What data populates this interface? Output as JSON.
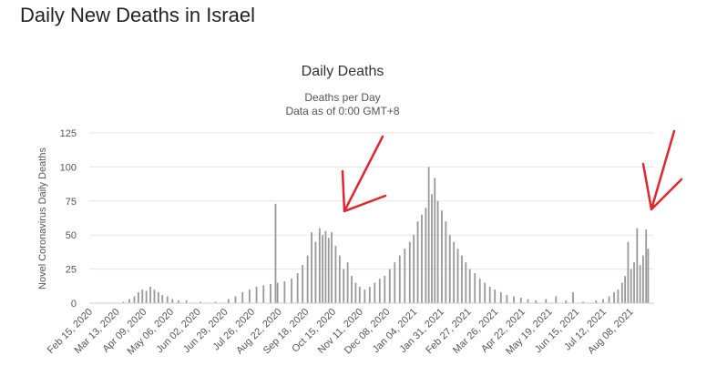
{
  "page": {
    "heading": "Daily New Deaths in Israel"
  },
  "chart_data": {
    "type": "bar",
    "title": "Daily Deaths",
    "subtitle_lines": [
      "Deaths per Day",
      "Data as of 0:00 GMT+8"
    ],
    "ylabel": "Novel Coronavirus Daily Deaths",
    "xlabel": "",
    "ylim": [
      0,
      125
    ],
    "yticks": [
      0,
      25,
      50,
      75,
      100,
      125
    ],
    "grid": true,
    "bar_color": "#999999",
    "annotation_color": "#e0262f",
    "x_range": [
      "2020-02-15",
      "2021-09-01"
    ],
    "xtick_labels": [
      "Feb 15, 2020",
      "Mar 13, 2020",
      "Apr 09, 2020",
      "May 06, 2020",
      "Jun 02, 2020",
      "Jun 29, 2020",
      "Jul 26, 2020",
      "Aug 22, 2020",
      "Sep 18, 2020",
      "Oct 15, 2020",
      "Nov 11, 2020",
      "Dec 08, 2020",
      "Jan 04, 2021",
      "Jan 31, 2021",
      "Feb 27, 2021",
      "Mar 26, 2021",
      "Apr 22, 2021",
      "May 19, 2021",
      "Jun 15, 2021",
      "Jul 12, 2021",
      "Aug 08, 2021"
    ],
    "values": [
      {
        "date": "2020-03-20",
        "y": 1
      },
      {
        "date": "2020-03-26",
        "y": 3
      },
      {
        "date": "2020-03-31",
        "y": 5
      },
      {
        "date": "2020-04-04",
        "y": 8
      },
      {
        "date": "2020-04-08",
        "y": 10
      },
      {
        "date": "2020-04-12",
        "y": 9
      },
      {
        "date": "2020-04-16",
        "y": 12
      },
      {
        "date": "2020-04-20",
        "y": 10
      },
      {
        "date": "2020-04-24",
        "y": 8
      },
      {
        "date": "2020-04-28",
        "y": 6
      },
      {
        "date": "2020-05-03",
        "y": 5
      },
      {
        "date": "2020-05-08",
        "y": 3
      },
      {
        "date": "2020-05-14",
        "y": 2
      },
      {
        "date": "2020-05-22",
        "y": 2
      },
      {
        "date": "2020-06-05",
        "y": 1
      },
      {
        "date": "2020-06-20",
        "y": 1
      },
      {
        "date": "2020-07-03",
        "y": 3
      },
      {
        "date": "2020-07-10",
        "y": 5
      },
      {
        "date": "2020-07-17",
        "y": 8
      },
      {
        "date": "2020-07-24",
        "y": 10
      },
      {
        "date": "2020-07-31",
        "y": 12
      },
      {
        "date": "2020-08-07",
        "y": 13
      },
      {
        "date": "2020-08-14",
        "y": 14
      },
      {
        "date": "2020-08-19",
        "y": 73
      },
      {
        "date": "2020-08-21",
        "y": 15
      },
      {
        "date": "2020-08-28",
        "y": 16
      },
      {
        "date": "2020-09-04",
        "y": 18
      },
      {
        "date": "2020-09-10",
        "y": 22
      },
      {
        "date": "2020-09-15",
        "y": 28
      },
      {
        "date": "2020-09-20",
        "y": 35
      },
      {
        "date": "2020-09-24",
        "y": 52
      },
      {
        "date": "2020-09-28",
        "y": 45
      },
      {
        "date": "2020-10-02",
        "y": 55
      },
      {
        "date": "2020-10-05",
        "y": 50
      },
      {
        "date": "2020-10-08",
        "y": 53
      },
      {
        "date": "2020-10-11",
        "y": 48
      },
      {
        "date": "2020-10-14",
        "y": 52
      },
      {
        "date": "2020-10-18",
        "y": 42
      },
      {
        "date": "2020-10-22",
        "y": 35
      },
      {
        "date": "2020-10-26",
        "y": 25
      },
      {
        "date": "2020-10-30",
        "y": 30
      },
      {
        "date": "2020-11-03",
        "y": 20
      },
      {
        "date": "2020-11-07",
        "y": 15
      },
      {
        "date": "2020-11-11",
        "y": 12
      },
      {
        "date": "2020-11-16",
        "y": 10
      },
      {
        "date": "2020-11-21",
        "y": 12
      },
      {
        "date": "2020-11-26",
        "y": 15
      },
      {
        "date": "2020-12-01",
        "y": 18
      },
      {
        "date": "2020-12-06",
        "y": 20
      },
      {
        "date": "2020-12-11",
        "y": 25
      },
      {
        "date": "2020-12-16",
        "y": 30
      },
      {
        "date": "2020-12-21",
        "y": 35
      },
      {
        "date": "2020-12-26",
        "y": 40
      },
      {
        "date": "2020-12-31",
        "y": 45
      },
      {
        "date": "2021-01-04",
        "y": 50
      },
      {
        "date": "2021-01-08",
        "y": 60
      },
      {
        "date": "2021-01-12",
        "y": 65
      },
      {
        "date": "2021-01-16",
        "y": 70
      },
      {
        "date": "2021-01-19",
        "y": 100
      },
      {
        "date": "2021-01-22",
        "y": 80
      },
      {
        "date": "2021-01-25",
        "y": 92
      },
      {
        "date": "2021-01-28",
        "y": 75
      },
      {
        "date": "2021-02-01",
        "y": 68
      },
      {
        "date": "2021-02-05",
        "y": 60
      },
      {
        "date": "2021-02-09",
        "y": 50
      },
      {
        "date": "2021-02-13",
        "y": 45
      },
      {
        "date": "2021-02-17",
        "y": 40
      },
      {
        "date": "2021-02-21",
        "y": 35
      },
      {
        "date": "2021-02-25",
        "y": 30
      },
      {
        "date": "2021-03-01",
        "y": 25
      },
      {
        "date": "2021-03-06",
        "y": 22
      },
      {
        "date": "2021-03-11",
        "y": 18
      },
      {
        "date": "2021-03-16",
        "y": 15
      },
      {
        "date": "2021-03-21",
        "y": 12
      },
      {
        "date": "2021-03-26",
        "y": 10
      },
      {
        "date": "2021-04-01",
        "y": 8
      },
      {
        "date": "2021-04-07",
        "y": 6
      },
      {
        "date": "2021-04-14",
        "y": 5
      },
      {
        "date": "2021-04-21",
        "y": 4
      },
      {
        "date": "2021-04-28",
        "y": 3
      },
      {
        "date": "2021-05-06",
        "y": 2
      },
      {
        "date": "2021-05-16",
        "y": 3
      },
      {
        "date": "2021-05-26",
        "y": 5
      },
      {
        "date": "2021-06-05",
        "y": 2
      },
      {
        "date": "2021-06-12",
        "y": 8
      },
      {
        "date": "2021-06-22",
        "y": 1
      },
      {
        "date": "2021-07-05",
        "y": 2
      },
      {
        "date": "2021-07-12",
        "y": 3
      },
      {
        "date": "2021-07-18",
        "y": 5
      },
      {
        "date": "2021-07-23",
        "y": 8
      },
      {
        "date": "2021-07-27",
        "y": 10
      },
      {
        "date": "2021-07-31",
        "y": 15
      },
      {
        "date": "2021-08-03",
        "y": 20
      },
      {
        "date": "2021-08-06",
        "y": 45
      },
      {
        "date": "2021-08-09",
        "y": 25
      },
      {
        "date": "2021-08-12",
        "y": 30
      },
      {
        "date": "2021-08-15",
        "y": 55
      },
      {
        "date": "2021-08-18",
        "y": 28
      },
      {
        "date": "2021-08-21",
        "y": 35
      },
      {
        "date": "2021-08-24",
        "y": 54
      },
      {
        "date": "2021-08-26",
        "y": 40
      }
    ]
  }
}
